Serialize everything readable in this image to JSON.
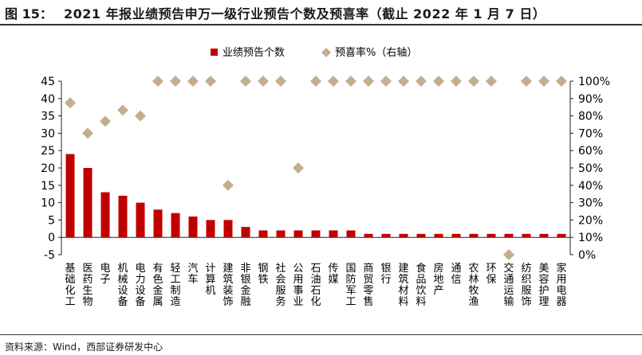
{
  "figure": {
    "label": "图 15：",
    "title": "2021 年报业绩预告申万一级行业预告个数及预喜率（截止 2022 年 1 月 7 日）",
    "source": "资料来源：Wind，西部证券研发中心"
  },
  "colors": {
    "bar": "#C00000",
    "marker": "#C4AE8E"
  },
  "chart_data": {
    "type": "bar",
    "legend_placement": "top-center",
    "grid": false,
    "categories": [
      "基础化工",
      "医药生物",
      "电子",
      "机械设备",
      "电力设备",
      "有色金属",
      "轻工制造",
      "汽车",
      "计算机",
      "建筑装饰",
      "非银金融",
      "钢铁",
      "社会服务",
      "公用事业",
      "石油石化",
      "传媒",
      "国防军工",
      "商贸零售",
      "银行",
      "建筑材料",
      "食品饮料",
      "房地产",
      "通信",
      "农林牧渔",
      "环保",
      "交通运输",
      "纺织服饰",
      "美容护理",
      "家用电器"
    ],
    "series": [
      {
        "name": "业绩预告个数",
        "type": "bar",
        "axis": "left",
        "values": [
          24,
          20,
          13,
          12,
          10,
          8,
          7,
          6,
          5,
          5,
          3,
          2,
          2,
          2,
          2,
          2,
          2,
          1,
          1,
          1,
          1,
          1,
          1,
          1,
          1,
          1,
          1,
          1,
          1
        ]
      },
      {
        "name": "预喜率%（右轴）",
        "type": "scatter",
        "axis": "right",
        "values": [
          87.5,
          70,
          76.9,
          83.3,
          80,
          100,
          100,
          100,
          100,
          40,
          100,
          100,
          100,
          50,
          100,
          100,
          100,
          100,
          100,
          100,
          100,
          100,
          100,
          100,
          100,
          0,
          100,
          100,
          100
        ]
      }
    ],
    "y_left": {
      "min": -5,
      "max": 45,
      "ticks": [
        -5,
        0,
        5,
        10,
        15,
        20,
        25,
        30,
        35,
        40,
        45
      ]
    },
    "y_right": {
      "min": 0,
      "max": 100,
      "ticks": [
        "0%",
        "10%",
        "20%",
        "30%",
        "40%",
        "50%",
        "60%",
        "70%",
        "80%",
        "90%",
        "100%"
      ]
    }
  }
}
